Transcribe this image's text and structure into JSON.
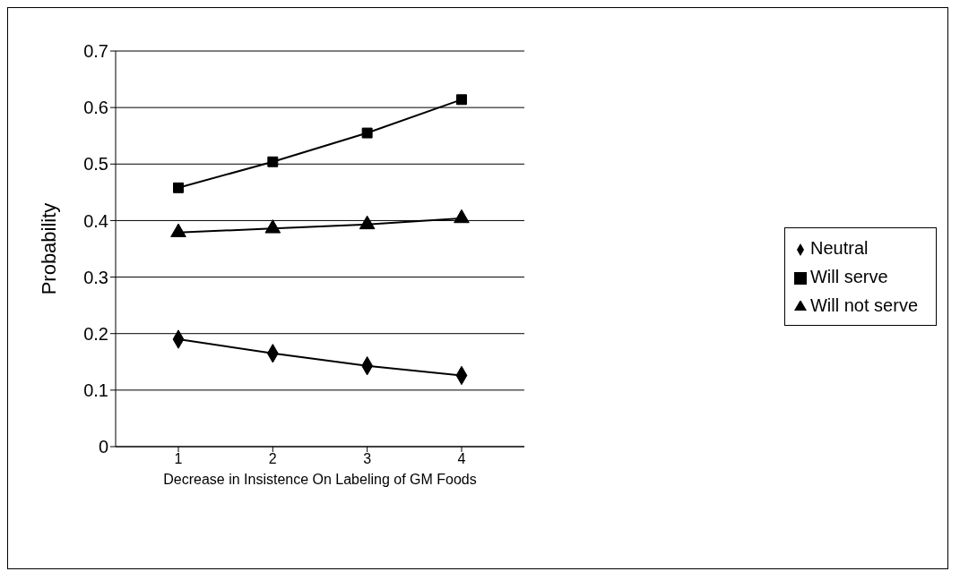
{
  "chart_data": {
    "type": "line",
    "xlabel": "Decrease in Insistence On Labeling of GM Foods",
    "ylabel": "Probability",
    "categories": [
      "1",
      "2",
      "3",
      "4"
    ],
    "series": [
      {
        "name": "Neutral",
        "color": "#000000",
        "marker": "diamond",
        "values": [
          0.19,
          0.165,
          0.143,
          0.126
        ]
      },
      {
        "name": "Will serve",
        "color": "#000000",
        "marker": "square",
        "values": [
          0.458,
          0.504,
          0.555,
          0.614
        ]
      },
      {
        "name": "Will not serve",
        "color": "#000000",
        "marker": "triangle",
        "values": [
          0.379,
          0.386,
          0.393,
          0.404
        ]
      }
    ],
    "ylim": [
      0,
      0.7
    ],
    "yticks": [
      0,
      0.1,
      0.2,
      0.3,
      0.4,
      0.5,
      0.6,
      0.7
    ],
    "grid": "y",
    "legend": "right",
    "line_style": "solid"
  }
}
